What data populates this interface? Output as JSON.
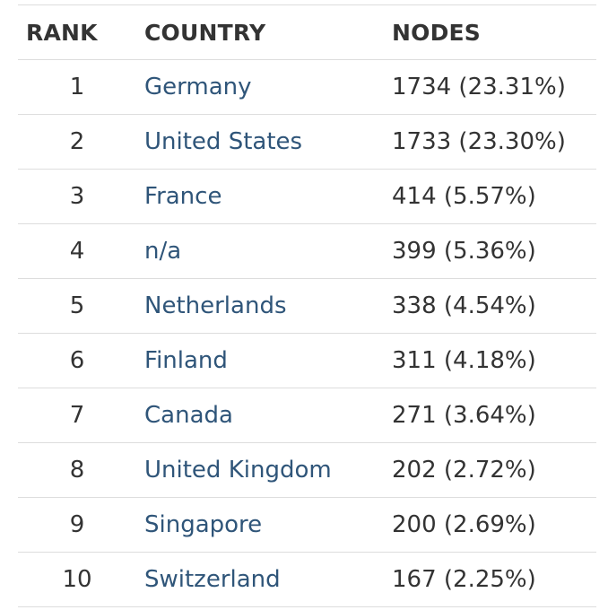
{
  "table": {
    "headers": {
      "rank": "RANK",
      "country": "COUNTRY",
      "nodes": "NODES"
    },
    "rows": [
      {
        "rank": "1",
        "country": "Germany",
        "nodes": "1734 (23.31%)"
      },
      {
        "rank": "2",
        "country": "United States",
        "nodes": "1733 (23.30%)"
      },
      {
        "rank": "3",
        "country": "France",
        "nodes": "414 (5.57%)"
      },
      {
        "rank": "4",
        "country": "n/a",
        "nodes": "399 (5.36%)"
      },
      {
        "rank": "5",
        "country": "Netherlands",
        "nodes": "338 (4.54%)"
      },
      {
        "rank": "6",
        "country": "Finland",
        "nodes": "311 (4.18%)"
      },
      {
        "rank": "7",
        "country": "Canada",
        "nodes": "271 (3.64%)"
      },
      {
        "rank": "8",
        "country": "United Kingdom",
        "nodes": "202 (2.72%)"
      },
      {
        "rank": "9",
        "country": "Singapore",
        "nodes": "200 (2.69%)"
      },
      {
        "rank": "10",
        "country": "Switzerland",
        "nodes": "167 (2.25%)"
      }
    ]
  },
  "colors": {
    "link": "#2f5579",
    "text": "#333333",
    "border": "#dddddd"
  }
}
